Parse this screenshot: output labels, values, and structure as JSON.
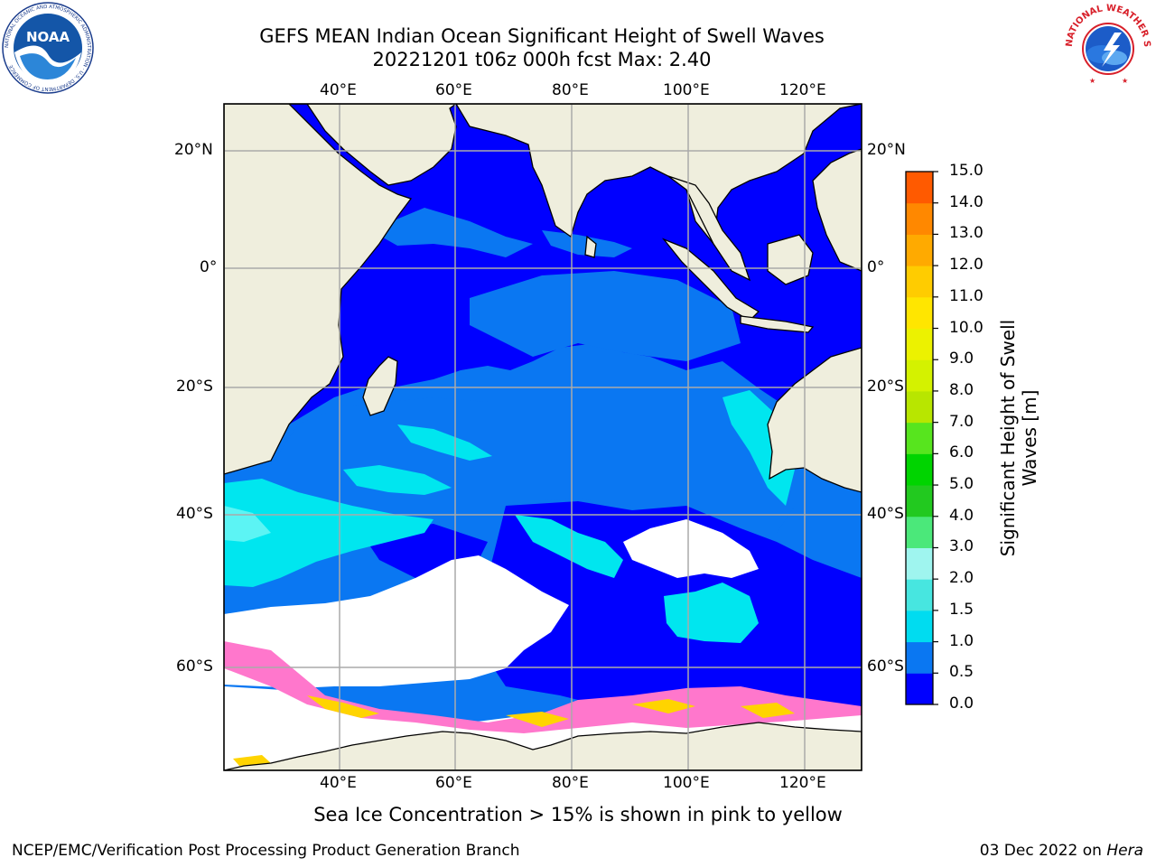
{
  "title": {
    "line1": "GEFS MEAN Indian Ocean Significant Height of Swell Waves",
    "line2": "20221201 t06z 000h fcst   Max: 2.40"
  },
  "logos": {
    "left": {
      "icon": "noaa-logo",
      "text": "NOAA",
      "ring_text": "NATIONAL OCEANIC AND ATMOSPHERIC ADMINISTRATION · U.S. DEPARTMENT OF COMMERCE"
    },
    "right": {
      "icon": "nws-logo",
      "ring_text": "NATIONAL WEATHER SERVICE"
    }
  },
  "axes": {
    "lon_labels": [
      "40°E",
      "60°E",
      "80°E",
      "100°E",
      "120°E"
    ],
    "lat_labels": [
      "20°N",
      "0°",
      "20°S",
      "40°S",
      "60°S"
    ]
  },
  "colorbar": {
    "title": "Significant Height of Swell Waves [m]",
    "ticks": [
      "0.0",
      "0.5",
      "1.0",
      "1.5",
      "2.0",
      "3.0",
      "4.0",
      "5.0",
      "6.0",
      "7.0",
      "8.0",
      "9.0",
      "10.0",
      "11.0",
      "12.0",
      "13.0",
      "14.0",
      "15.0"
    ],
    "colors": [
      "#0000ff",
      "#0a77f2",
      "#00dcf0",
      "#47e6e0",
      "#9ff5ef",
      "#4be87a",
      "#22c91f",
      "#00d400",
      "#57e51e",
      "#b8e600",
      "#d4f200",
      "#ecf200",
      "#ffe600",
      "#ffcc00",
      "#ffaa00",
      "#ff8800",
      "#ff5a00",
      "#ff2200",
      "#ff0000"
    ]
  },
  "colors": {
    "land": "#efeedd",
    "ocean_low": "#0000ff",
    "ocean_mid": "#0a77f2",
    "ocean_high": "#00e6ef",
    "ocean_peak": "#5cf4f4",
    "ice": "#ff77cc"
  },
  "bottom_note": "Sea Ice Concentration > 15% is shown in pink to yellow",
  "footer": {
    "left": "NCEP/EMC/Verification Post Processing Product Generation Branch",
    "right_date": "03 Dec 2022 on",
    "right_machine": "Hera"
  }
}
